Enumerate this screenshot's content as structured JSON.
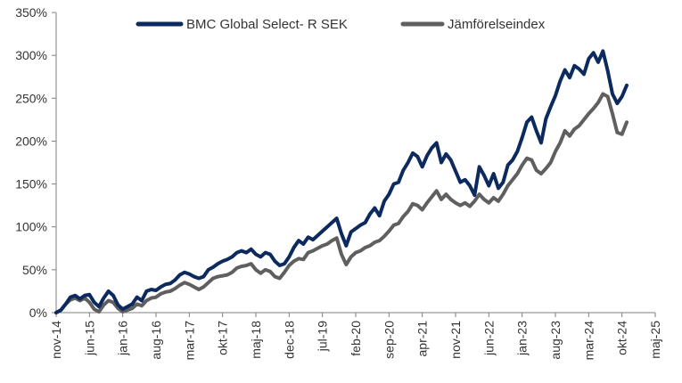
{
  "chart_data": {
    "type": "line",
    "title": "",
    "xlabel": "",
    "ylabel": "",
    "ylim": [
      0,
      350
    ],
    "y_ticks": [
      0,
      50,
      100,
      150,
      200,
      250,
      300,
      350
    ],
    "y_tick_labels": [
      "0%",
      "50%",
      "100%",
      "150%",
      "200%",
      "250%",
      "300%",
      "350%"
    ],
    "x_range": [
      0,
      126
    ],
    "x_ticks": [
      0,
      7,
      14,
      21,
      28,
      35,
      42,
      49,
      56,
      63,
      70,
      77,
      84,
      91,
      98,
      105,
      112,
      119,
      126
    ],
    "x_tick_labels": [
      "nov-14",
      "jun-15",
      "jan-16",
      "aug-16",
      "mar-17",
      "okt-17",
      "maj-18",
      "dec-18",
      "jul-19",
      "feb-20",
      "sep-20",
      "apr-21",
      "nov-21",
      "jun-22",
      "jan-23",
      "aug-23",
      "mar-24",
      "okt-24",
      "maj-25"
    ],
    "legend_position": "top",
    "grid": false,
    "series": [
      {
        "name": "BMC Global Select- R SEK",
        "color": "#0c2a5e",
        "points": [
          [
            0,
            0
          ],
          [
            1,
            3
          ],
          [
            2,
            10
          ],
          [
            3,
            18
          ],
          [
            4,
            20
          ],
          [
            5,
            16
          ],
          [
            6,
            20
          ],
          [
            7,
            21
          ],
          [
            8,
            12
          ],
          [
            9,
            7
          ],
          [
            10,
            17
          ],
          [
            11,
            25
          ],
          [
            12,
            20
          ],
          [
            13,
            9
          ],
          [
            14,
            4
          ],
          [
            15,
            7
          ],
          [
            16,
            10
          ],
          [
            17,
            18
          ],
          [
            18,
            14
          ],
          [
            19,
            25
          ],
          [
            20,
            27
          ],
          [
            21,
            26
          ],
          [
            22,
            30
          ],
          [
            23,
            33
          ],
          [
            24,
            34
          ],
          [
            25,
            38
          ],
          [
            26,
            44
          ],
          [
            27,
            47
          ],
          [
            28,
            45
          ],
          [
            29,
            42
          ],
          [
            30,
            40
          ],
          [
            31,
            42
          ],
          [
            32,
            50
          ],
          [
            33,
            53
          ],
          [
            34,
            57
          ],
          [
            35,
            60
          ],
          [
            36,
            62
          ],
          [
            37,
            65
          ],
          [
            38,
            70
          ],
          [
            39,
            72
          ],
          [
            40,
            70
          ],
          [
            41,
            74
          ],
          [
            42,
            68
          ],
          [
            43,
            65
          ],
          [
            44,
            70
          ],
          [
            45,
            68
          ],
          [
            46,
            60
          ],
          [
            47,
            55
          ],
          [
            48,
            57
          ],
          [
            49,
            65
          ],
          [
            50,
            76
          ],
          [
            51,
            84
          ],
          [
            52,
            80
          ],
          [
            53,
            88
          ],
          [
            54,
            85
          ],
          [
            55,
            90
          ],
          [
            56,
            95
          ],
          [
            57,
            100
          ],
          [
            58,
            105
          ],
          [
            59,
            110
          ],
          [
            60,
            92
          ],
          [
            61,
            78
          ],
          [
            62,
            94
          ],
          [
            63,
            98
          ],
          [
            64,
            102
          ],
          [
            65,
            105
          ],
          [
            66,
            115
          ],
          [
            67,
            122
          ],
          [
            68,
            113
          ],
          [
            69,
            130
          ],
          [
            70,
            138
          ],
          [
            71,
            150
          ],
          [
            72,
            152
          ],
          [
            73,
            166
          ],
          [
            74,
            175
          ],
          [
            75,
            186
          ],
          [
            76,
            182
          ],
          [
            77,
            170
          ],
          [
            78,
            183
          ],
          [
            79,
            192
          ],
          [
            80,
            198
          ],
          [
            81,
            175
          ],
          [
            82,
            185
          ],
          [
            83,
            178
          ],
          [
            84,
            165
          ],
          [
            85,
            152
          ],
          [
            86,
            155
          ],
          [
            87,
            148
          ],
          [
            88,
            137
          ],
          [
            89,
            170
          ],
          [
            90,
            160
          ],
          [
            91,
            148
          ],
          [
            92,
            162
          ],
          [
            93,
            145
          ],
          [
            94,
            152
          ],
          [
            95,
            172
          ],
          [
            96,
            178
          ],
          [
            97,
            188
          ],
          [
            98,
            204
          ],
          [
            99,
            222
          ],
          [
            100,
            228
          ],
          [
            101,
            212
          ],
          [
            102,
            198
          ],
          [
            103,
            226
          ],
          [
            104,
            240
          ],
          [
            105,
            253
          ],
          [
            106,
            270
          ],
          [
            107,
            283
          ],
          [
            108,
            274
          ],
          [
            109,
            288
          ],
          [
            110,
            284
          ],
          [
            111,
            278
          ],
          [
            112,
            296
          ],
          [
            113,
            303
          ],
          [
            114,
            292
          ],
          [
            115,
            305
          ],
          [
            116,
            282
          ],
          [
            117,
            255
          ],
          [
            118,
            244
          ],
          [
            119,
            252
          ],
          [
            120,
            265
          ]
        ]
      },
      {
        "name": "Jämförelseindex",
        "color": "#5f5f5f",
        "points": [
          [
            0,
            0
          ],
          [
            1,
            3
          ],
          [
            2,
            10
          ],
          [
            3,
            15
          ],
          [
            4,
            17
          ],
          [
            5,
            14
          ],
          [
            6,
            17
          ],
          [
            7,
            12
          ],
          [
            8,
            4
          ],
          [
            9,
            1
          ],
          [
            10,
            9
          ],
          [
            11,
            14
          ],
          [
            12,
            12
          ],
          [
            13,
            5
          ],
          [
            14,
            1
          ],
          [
            15,
            3
          ],
          [
            16,
            5
          ],
          [
            17,
            10
          ],
          [
            18,
            8
          ],
          [
            19,
            14
          ],
          [
            20,
            17
          ],
          [
            21,
            18
          ],
          [
            22,
            22
          ],
          [
            23,
            24
          ],
          [
            24,
            25
          ],
          [
            25,
            28
          ],
          [
            26,
            32
          ],
          [
            27,
            35
          ],
          [
            28,
            33
          ],
          [
            29,
            30
          ],
          [
            30,
            27
          ],
          [
            31,
            30
          ],
          [
            32,
            35
          ],
          [
            33,
            40
          ],
          [
            34,
            42
          ],
          [
            35,
            43
          ],
          [
            36,
            44
          ],
          [
            37,
            47
          ],
          [
            38,
            52
          ],
          [
            39,
            54
          ],
          [
            40,
            55
          ],
          [
            41,
            57
          ],
          [
            42,
            50
          ],
          [
            43,
            46
          ],
          [
            44,
            50
          ],
          [
            45,
            48
          ],
          [
            46,
            42
          ],
          [
            47,
            40
          ],
          [
            48,
            47
          ],
          [
            49,
            55
          ],
          [
            50,
            60
          ],
          [
            51,
            63
          ],
          [
            52,
            62
          ],
          [
            53,
            70
          ],
          [
            54,
            72
          ],
          [
            55,
            75
          ],
          [
            56,
            78
          ],
          [
            57,
            80
          ],
          [
            58,
            84
          ],
          [
            59,
            87
          ],
          [
            60,
            68
          ],
          [
            61,
            56
          ],
          [
            62,
            65
          ],
          [
            63,
            70
          ],
          [
            64,
            72
          ],
          [
            65,
            76
          ],
          [
            66,
            78
          ],
          [
            67,
            82
          ],
          [
            68,
            84
          ],
          [
            69,
            89
          ],
          [
            70,
            95
          ],
          [
            71,
            102
          ],
          [
            72,
            104
          ],
          [
            73,
            112
          ],
          [
            74,
            118
          ],
          [
            75,
            127
          ],
          [
            76,
            125
          ],
          [
            77,
            120
          ],
          [
            78,
            128
          ],
          [
            79,
            135
          ],
          [
            80,
            142
          ],
          [
            81,
            132
          ],
          [
            82,
            138
          ],
          [
            83,
            132
          ],
          [
            84,
            128
          ],
          [
            85,
            125
          ],
          [
            86,
            128
          ],
          [
            87,
            124
          ],
          [
            88,
            130
          ],
          [
            89,
            138
          ],
          [
            90,
            132
          ],
          [
            91,
            128
          ],
          [
            92,
            134
          ],
          [
            93,
            130
          ],
          [
            94,
            138
          ],
          [
            95,
            148
          ],
          [
            96,
            155
          ],
          [
            97,
            162
          ],
          [
            98,
            172
          ],
          [
            99,
            180
          ],
          [
            100,
            178
          ],
          [
            101,
            166
          ],
          [
            102,
            162
          ],
          [
            103,
            168
          ],
          [
            104,
            175
          ],
          [
            105,
            188
          ],
          [
            106,
            198
          ],
          [
            107,
            212
          ],
          [
            108,
            206
          ],
          [
            109,
            214
          ],
          [
            110,
            218
          ],
          [
            111,
            225
          ],
          [
            112,
            232
          ],
          [
            113,
            238
          ],
          [
            114,
            245
          ],
          [
            115,
            255
          ],
          [
            116,
            252
          ],
          [
            117,
            232
          ],
          [
            118,
            210
          ],
          [
            119,
            208
          ],
          [
            120,
            222
          ]
        ]
      }
    ]
  }
}
